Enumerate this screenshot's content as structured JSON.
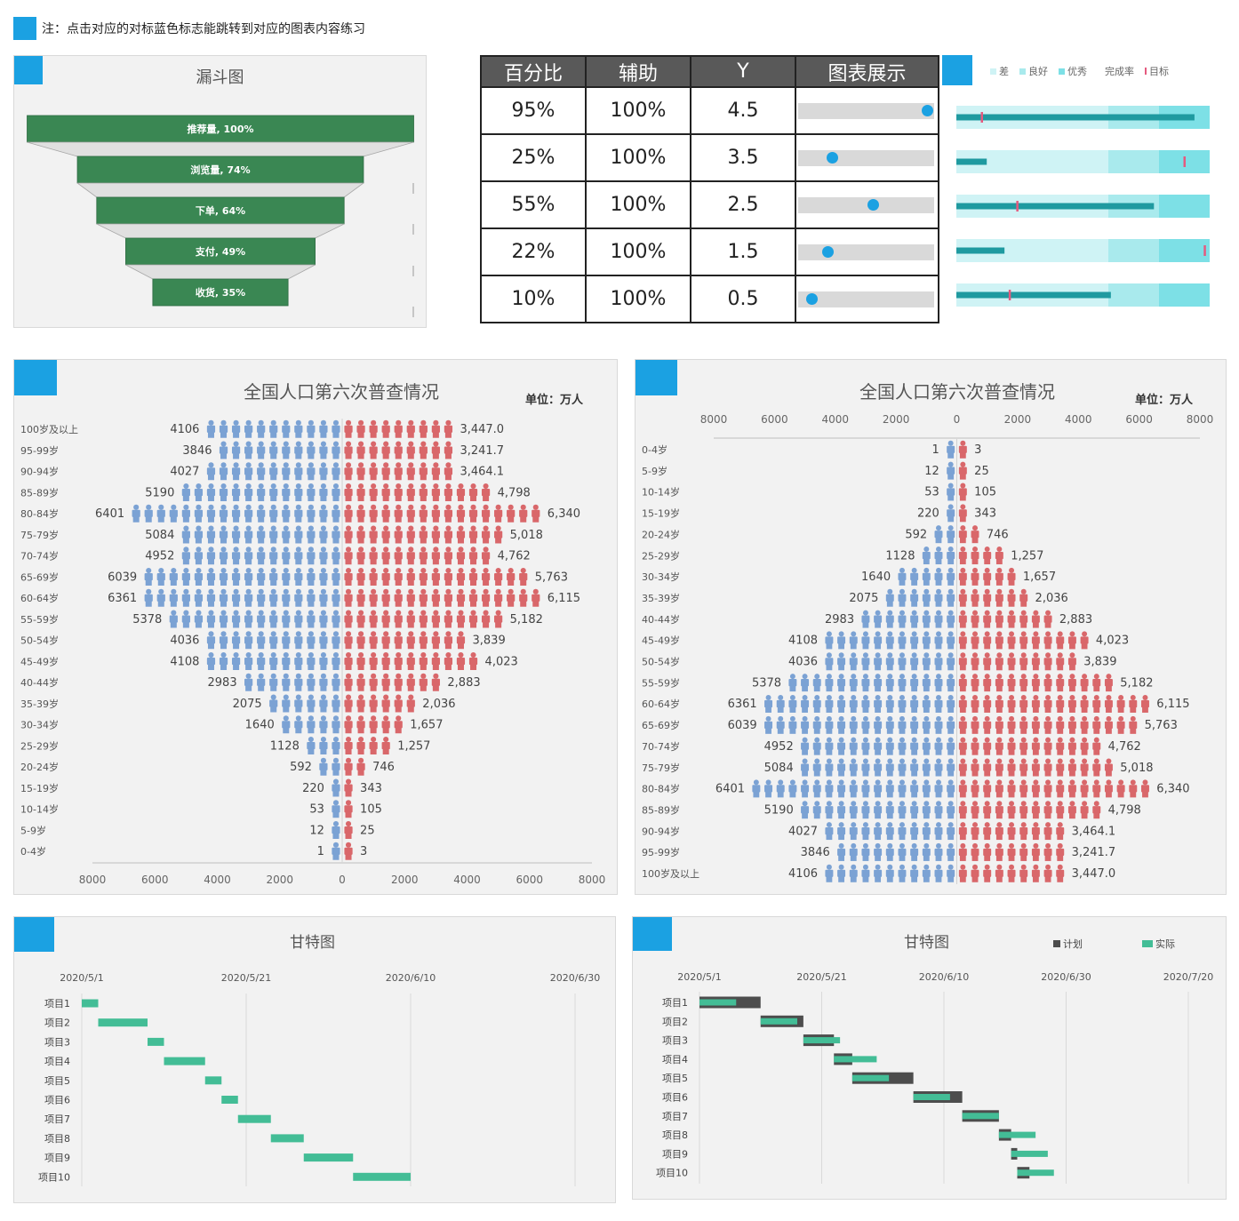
{
  "note": {
    "text": "注：点击对应的对标蓝色标志能跳转到对应的图表内容练习"
  },
  "colors": {
    "accent": "#1ba1e2",
    "funnel": "#3a8753",
    "male": "#7ba2d4",
    "female": "#d9676a",
    "gantt_plan": "#4d4d4d",
    "gantt_actual": "#43bd96",
    "bullet_bad": "#cff3f5",
    "bullet_good": "#a9eaed",
    "bullet_excellent": "#7de0e6",
    "bullet_value": "#1f9aa0",
    "bullet_target": "#e55a7f"
  },
  "funnel": {
    "title": "漏斗图",
    "chart_data": {
      "type": "funnel",
      "stages": [
        {
          "label": "推荐量, 100%",
          "value": 100
        },
        {
          "label": "浏览量, 74%",
          "value": 74
        },
        {
          "label": "下单, 64%",
          "value": 64
        },
        {
          "label": "支付, 49%",
          "value": 49
        },
        {
          "label": "收货, 35%",
          "value": 35
        }
      ]
    }
  },
  "dot_table": {
    "headers": [
      "百分比",
      "辅助",
      "Y",
      "图表展示"
    ],
    "rows": [
      {
        "pct": "95%",
        "aux": "100%",
        "y": "4.5",
        "value": 0.95
      },
      {
        "pct": "25%",
        "aux": "100%",
        "y": "3.5",
        "value": 0.25
      },
      {
        "pct": "55%",
        "aux": "100%",
        "y": "2.5",
        "value": 0.55
      },
      {
        "pct": "22%",
        "aux": "100%",
        "y": "1.5",
        "value": 0.22
      },
      {
        "pct": "10%",
        "aux": "100%",
        "y": "0.5",
        "value": 0.1
      }
    ]
  },
  "bullet": {
    "legend": [
      "差",
      "良好",
      "优秀",
      "完成率",
      "目标"
    ],
    "chart_data": {
      "type": "bullet",
      "max": 100,
      "bands": [
        60,
        80,
        100
      ],
      "rows": [
        {
          "value": 94,
          "target": 10
        },
        {
          "value": 12,
          "target": 90
        },
        {
          "value": 78,
          "target": 24
        },
        {
          "value": 19,
          "target": 98
        },
        {
          "value": 61,
          "target": 21
        }
      ]
    }
  },
  "pyramid_left": {
    "title": "全国人口第六次普查情况",
    "unit": "单位：万人",
    "chart_data": {
      "type": "bar",
      "ages": [
        "100岁及以上",
        "95-99岁",
        "90-94岁",
        "85-89岁",
        "80-84岁",
        "75-79岁",
        "70-74岁",
        "65-69岁",
        "60-64岁",
        "55-59岁",
        "50-54岁",
        "45-49岁",
        "40-44岁",
        "35-39岁",
        "30-34岁",
        "25-29岁",
        "20-24岁",
        "15-19岁",
        "10-14岁",
        "5-9岁",
        "0-4岁"
      ],
      "male": [
        4106,
        3846,
        4027,
        5190,
        6401,
        5084,
        4952,
        6039,
        6361,
        5378,
        4036,
        4108,
        2983,
        2075,
        1640,
        1128,
        592,
        220,
        53,
        12,
        1
      ],
      "female_labels": [
        "3,447.0",
        "3,241.7",
        "3,464.1",
        "4,798",
        "6,340",
        "5,018",
        "4,762",
        "5,763",
        "6,115",
        "5,182",
        "3,839",
        "4,023",
        "2,883",
        "2,036",
        "1,657",
        "1,257",
        "746",
        "343",
        "105",
        "25",
        "3"
      ],
      "female": [
        3447.0,
        3241.7,
        3464.1,
        4798,
        6340,
        5018,
        4762,
        5763,
        6115,
        5182,
        3839,
        4023,
        2883,
        2036,
        1657,
        1257,
        746,
        343,
        105,
        25,
        3
      ],
      "axis_ticks": [
        "8000",
        "6000",
        "4000",
        "2000",
        "0",
        "2000",
        "4000",
        "6000",
        "8000"
      ],
      "xlim": [
        -8000,
        8000
      ]
    }
  },
  "pyramid_right": {
    "title": "全国人口第六次普查情况",
    "unit": "单位：万人",
    "chart_data": {
      "type": "bar",
      "ages": [
        "0-4岁",
        "5-9岁",
        "10-14岁",
        "15-19岁",
        "20-24岁",
        "25-29岁",
        "30-34岁",
        "35-39岁",
        "40-44岁",
        "45-49岁",
        "50-54岁",
        "55-59岁",
        "60-64岁",
        "65-69岁",
        "70-74岁",
        "75-79岁",
        "80-84岁",
        "85-89岁",
        "90-94岁",
        "95-99岁",
        "100岁及以上"
      ],
      "male": [
        1,
        12,
        53,
        220,
        592,
        1128,
        1640,
        2075,
        2983,
        4108,
        4036,
        5378,
        6361,
        6039,
        4952,
        5084,
        6401,
        5190,
        4027,
        3846,
        4106
      ],
      "female_labels": [
        "3",
        "25",
        "105",
        "343",
        "746",
        "1,257",
        "1,657",
        "2,036",
        "2,883",
        "4,023",
        "3,839",
        "5,182",
        "6,115",
        "5,763",
        "4,762",
        "5,018",
        "6,340",
        "4,798",
        "3,464.1",
        "3,241.7",
        "3,447.0"
      ],
      "female": [
        3,
        25,
        105,
        343,
        746,
        1257,
        1657,
        2036,
        2883,
        4023,
        3839,
        5182,
        6115,
        5763,
        4762,
        5018,
        6340,
        4798,
        3464.1,
        3241.7,
        3447.0
      ],
      "axis_ticks": [
        "8000",
        "6000",
        "4000",
        "2000",
        "0",
        "2000",
        "4000",
        "6000",
        "8000"
      ],
      "xlim": [
        -8000,
        8000
      ]
    }
  },
  "gantt_left": {
    "title": "甘特图",
    "chart_data": {
      "type": "gantt",
      "axis_labels": [
        "2020/5/1",
        "2020/5/21",
        "2020/6/10",
        "2020/6/30"
      ],
      "tasks": [
        {
          "name": "项目1",
          "start": "2020/5/1",
          "end": "2020/5/3"
        },
        {
          "name": "项目2",
          "start": "2020/5/3",
          "end": "2020/5/9"
        },
        {
          "name": "项目3",
          "start": "2020/5/9",
          "end": "2020/5/11"
        },
        {
          "name": "项目4",
          "start": "2020/5/11",
          "end": "2020/5/16"
        },
        {
          "name": "项目5",
          "start": "2020/5/16",
          "end": "2020/5/18"
        },
        {
          "name": "项目6",
          "start": "2020/5/18",
          "end": "2020/5/20"
        },
        {
          "name": "项目7",
          "start": "2020/5/20",
          "end": "2020/5/24"
        },
        {
          "name": "项目8",
          "start": "2020/5/24",
          "end": "2020/5/28"
        },
        {
          "name": "项目9",
          "start": "2020/5/28",
          "end": "2020/6/3"
        },
        {
          "name": "项目10",
          "start": "2020/6/3",
          "end": "2020/6/10"
        }
      ]
    }
  },
  "gantt_right": {
    "title": "甘特图",
    "legend": [
      "计划",
      "实际"
    ],
    "chart_data": {
      "type": "gantt",
      "axis_labels": [
        "2020/5/1",
        "2020/5/21",
        "2020/6/10",
        "2020/6/30",
        "2020/7/20"
      ],
      "tasks": [
        {
          "name": "项目1",
          "plan_start": "2020/5/1",
          "plan_end": "2020/5/11",
          "actual_start": "2020/5/1",
          "actual_end": "2020/5/7"
        },
        {
          "name": "项目2",
          "plan_start": "2020/5/11",
          "plan_end": "2020/5/18",
          "actual_start": "2020/5/11",
          "actual_end": "2020/5/17"
        },
        {
          "name": "项目3",
          "plan_start": "2020/5/18",
          "plan_end": "2020/5/23",
          "actual_start": "2020/5/18",
          "actual_end": "2020/5/24"
        },
        {
          "name": "项目4",
          "plan_start": "2020/5/23",
          "plan_end": "2020/5/26",
          "actual_start": "2020/5/23",
          "actual_end": "2020/5/30"
        },
        {
          "name": "项目5",
          "plan_start": "2020/5/26",
          "plan_end": "2020/6/5",
          "actual_start": "2020/5/26",
          "actual_end": "2020/6/1"
        },
        {
          "name": "项目6",
          "plan_start": "2020/6/5",
          "plan_end": "2020/6/13",
          "actual_start": "2020/6/5",
          "actual_end": "2020/6/11"
        },
        {
          "name": "项目7",
          "plan_start": "2020/6/13",
          "plan_end": "2020/6/19",
          "actual_start": "2020/6/13",
          "actual_end": "2020/6/19"
        },
        {
          "name": "项目8",
          "plan_start": "2020/6/19",
          "plan_end": "2020/6/21",
          "actual_start": "2020/6/19",
          "actual_end": "2020/6/25"
        },
        {
          "name": "项目9",
          "plan_start": "2020/6/21",
          "plan_end": "2020/6/22",
          "actual_start": "2020/6/21",
          "actual_end": "2020/6/27"
        },
        {
          "name": "项目10",
          "plan_start": "2020/6/22",
          "plan_end": "2020/6/24",
          "actual_start": "2020/6/22",
          "actual_end": "2020/6/28"
        }
      ]
    }
  }
}
